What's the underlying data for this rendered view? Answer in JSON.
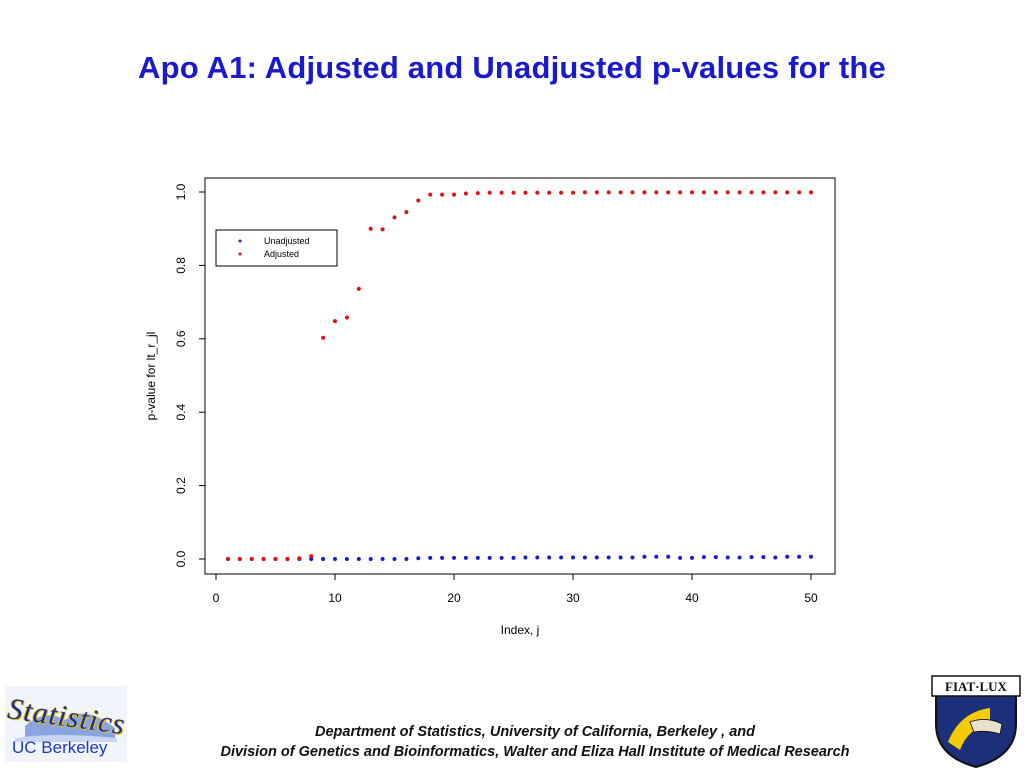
{
  "slide": {
    "title": "Apo A1: Adjusted and Unadjusted p-values for the",
    "footer_line1": "Department of Statistics, University of California, Berkeley , and",
    "footer_line2": "Division of Genetics and Bioinformatics, Walter and Eliza Hall Institute of Medical Research",
    "logo_left_word": "Statistics",
    "logo_left_sub": "UC Berkeley",
    "logo_right_text": "FIAT·LUX"
  },
  "colors": {
    "title": "#1a1acc",
    "unadjusted": "#1a1acc",
    "adjusted": "#dd1111"
  },
  "chart_data": {
    "type": "scatter",
    "title": "",
    "xlabel": "Index, j",
    "ylabel": "p-value for lt_r_jl",
    "xlim": [
      0,
      50
    ],
    "ylim": [
      0,
      1
    ],
    "x_ticks": [
      "0",
      "10",
      "20",
      "30",
      "40",
      "50"
    ],
    "y_ticks": [
      "0.0",
      "0.2",
      "0.4",
      "0.6",
      "0.8",
      "1.0"
    ],
    "grid": false,
    "legend": {
      "placement": "top-left",
      "entries": [
        "Unadjusted",
        "Adjusted"
      ]
    },
    "series": [
      {
        "name": "Unadjusted",
        "x": [
          1,
          2,
          3,
          4,
          5,
          6,
          7,
          8,
          9,
          10,
          11,
          12,
          13,
          14,
          15,
          16,
          17,
          18,
          19,
          20,
          21,
          22,
          23,
          24,
          25,
          26,
          27,
          28,
          29,
          30,
          31,
          32,
          33,
          34,
          35,
          36,
          37,
          38,
          39,
          40,
          41,
          42,
          43,
          44,
          45,
          46,
          47,
          48,
          49,
          50
        ],
        "y": [
          0,
          0,
          0,
          0,
          0,
          0,
          0,
          0,
          0,
          0,
          0,
          0,
          0,
          0,
          0,
          0,
          0.002,
          0.003,
          0.003,
          0.003,
          0.003,
          0.003,
          0.003,
          0.003,
          0.003,
          0.004,
          0.004,
          0.004,
          0.004,
          0.004,
          0.004,
          0.004,
          0.004,
          0.004,
          0.004,
          0.006,
          0.006,
          0.006,
          0.003,
          0.003,
          0.005,
          0.005,
          0.004,
          0.004,
          0.005,
          0.005,
          0.004,
          0.006,
          0.006,
          0.006
        ]
      },
      {
        "name": "Adjusted",
        "x": [
          1,
          2,
          3,
          4,
          5,
          6,
          7,
          8,
          9,
          10,
          11,
          12,
          13,
          14,
          15,
          16,
          17,
          18,
          19,
          20,
          21,
          22,
          23,
          24,
          25,
          26,
          27,
          28,
          29,
          30,
          31,
          32,
          33,
          34,
          35,
          36,
          37,
          38,
          39,
          40,
          41,
          42,
          43,
          44,
          45,
          46,
          47,
          48,
          49,
          50
        ],
        "y": [
          0,
          0,
          0,
          0,
          0,
          0,
          0.002,
          0.008,
          0.603,
          0.648,
          0.658,
          0.736,
          0.9,
          0.898,
          0.931,
          0.945,
          0.977,
          0.993,
          0.993,
          0.993,
          0.996,
          0.997,
          0.998,
          0.998,
          0.998,
          0.998,
          0.998,
          0.998,
          0.998,
          0.998,
          0.999,
          0.999,
          0.999,
          0.999,
          0.999,
          0.999,
          0.999,
          0.999,
          0.999,
          0.999,
          0.999,
          0.999,
          0.999,
          0.999,
          0.999,
          0.999,
          0.999,
          0.999,
          0.999,
          0.999
        ]
      }
    ]
  }
}
